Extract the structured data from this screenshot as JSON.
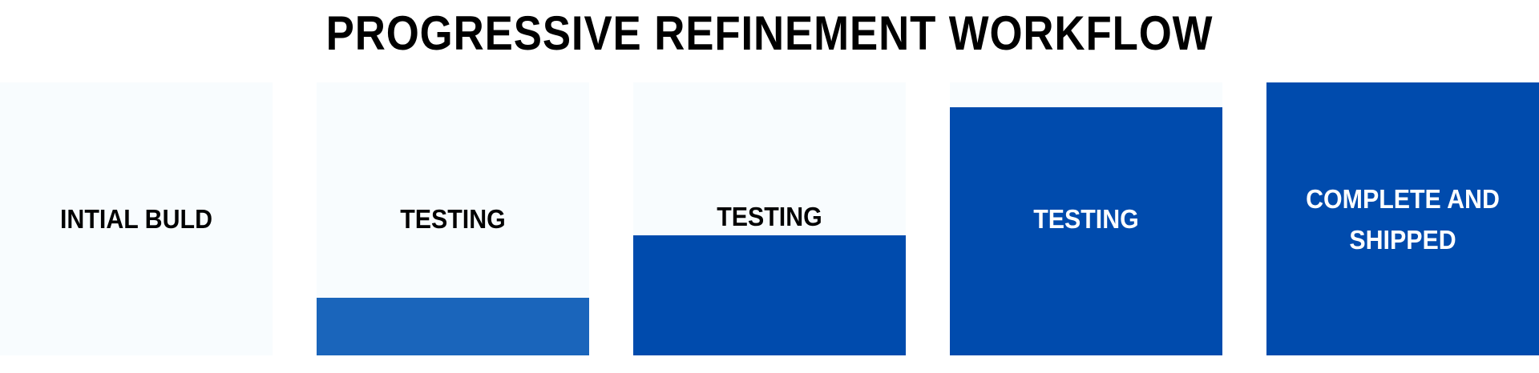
{
  "title": "PROGRESSIVE REFINEMENT WORKFLOW",
  "colors": {
    "background": "#f8fcfe",
    "fill_light": "#1a65bb",
    "fill_dark": "#004bad",
    "text_dark": "#000000",
    "text_light": "#ffffff"
  },
  "stages": [
    {
      "label": "INTIAL BULD",
      "fill_fraction": 0.0,
      "fill_color": "#004bad",
      "text_color": "#000000"
    },
    {
      "label": "TESTING",
      "fill_fraction": 0.21,
      "fill_color": "#1a65bb",
      "text_color": "#000000"
    },
    {
      "label": "TESTING",
      "fill_fraction": 0.44,
      "fill_color": "#004bad",
      "text_color": "#000000"
    },
    {
      "label": "TESTING",
      "fill_fraction": 0.91,
      "fill_color": "#004bad",
      "text_color": "#ffffff"
    },
    {
      "label_lines": [
        "COMPLETE AND",
        "SHIPPED"
      ],
      "fill_fraction": 1.0,
      "fill_color": "#004bad",
      "text_color": "#ffffff"
    }
  ]
}
